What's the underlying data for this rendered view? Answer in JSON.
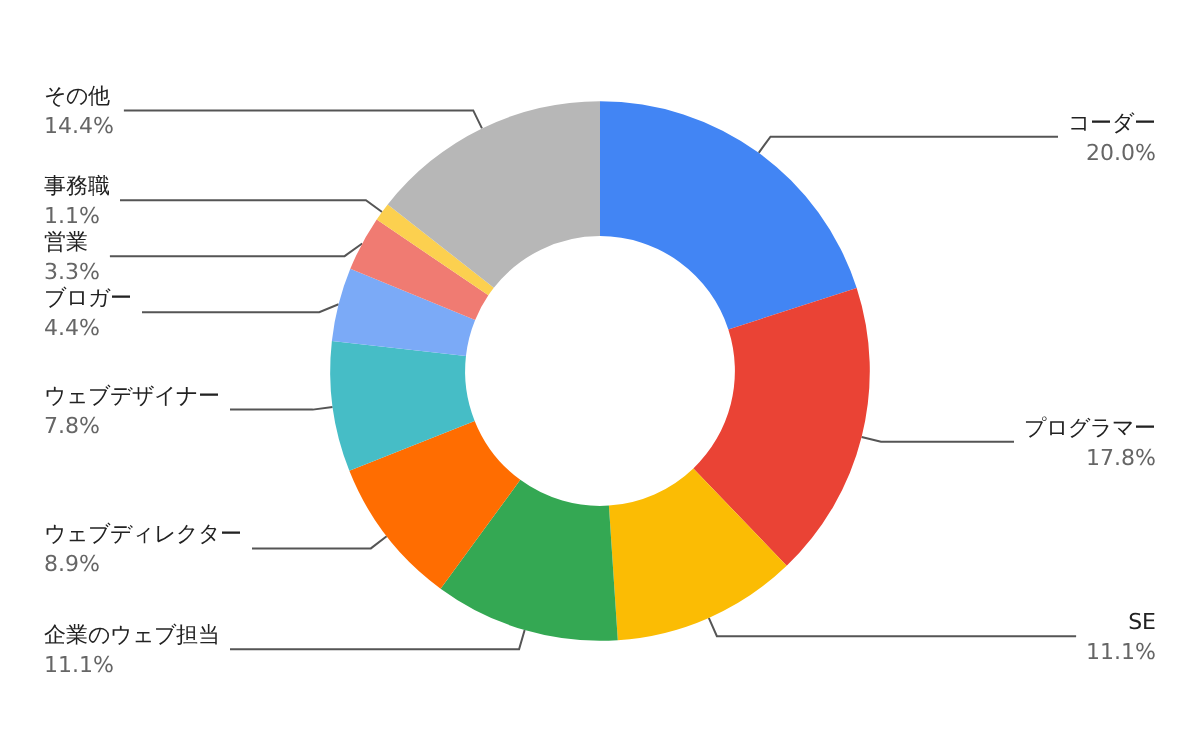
{
  "chart_data": {
    "type": "donut",
    "categories": [
      "コーダー",
      "プログラマー",
      "SE",
      "企業のウェブ担当",
      "ウェブディレクター",
      "ウェブデザイナー",
      "ブロガー",
      "営業",
      "事務職",
      "その他"
    ],
    "values": [
      20.0,
      17.8,
      11.1,
      11.1,
      8.9,
      7.8,
      4.4,
      3.3,
      1.1,
      14.4
    ],
    "value_labels": [
      "20.0%",
      "17.8%",
      "11.1%",
      "11.1%",
      "8.9%",
      "7.8%",
      "4.4%",
      "3.3%",
      "1.1%",
      "14.4%"
    ],
    "colors": [
      "#4285f4",
      "#ea4335",
      "#fbbc04",
      "#34a853",
      "#ff6d01",
      "#46bdc6",
      "#7baaf7",
      "#f07b72",
      "#fcd04f",
      "#b7b7b7"
    ],
    "legend": false
  }
}
